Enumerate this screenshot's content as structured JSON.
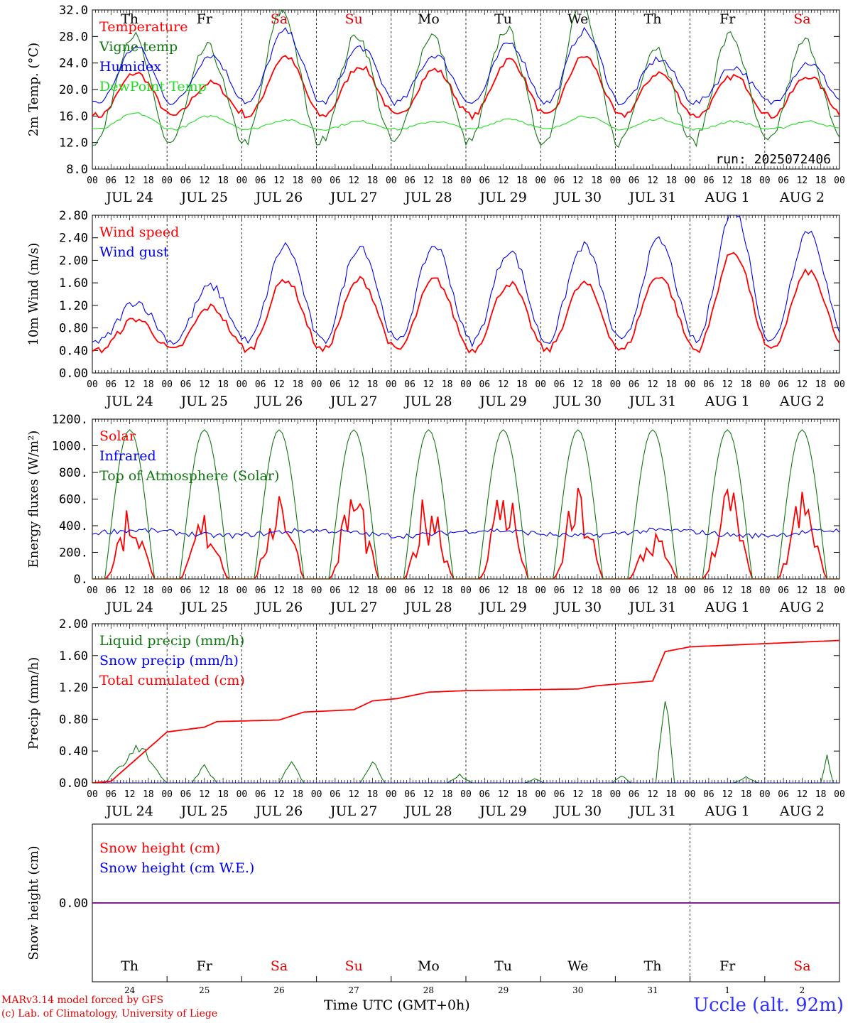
{
  "colors": {
    "red": "#ff0000",
    "green": "#117711",
    "blue": "#0000ee",
    "lightgreen": "#22dd22",
    "weekend": "#e00000"
  },
  "days": [
    {
      "weekday": "Th",
      "date": "JUL 24",
      "daynum": "24",
      "weekend": false
    },
    {
      "weekday": "Fr",
      "date": "JUL 25",
      "daynum": "25",
      "weekend": false
    },
    {
      "weekday": "Sa",
      "date": "JUL 26",
      "daynum": "26",
      "weekend": true
    },
    {
      "weekday": "Su",
      "date": "JUL 27",
      "daynum": "27",
      "weekend": true
    },
    {
      "weekday": "Mo",
      "date": "JUL 28",
      "daynum": "28",
      "weekend": false
    },
    {
      "weekday": "Tu",
      "date": "JUL 29",
      "daynum": "29",
      "weekend": false
    },
    {
      "weekday": "We",
      "date": "JUL 30",
      "daynum": "30",
      "weekend": false
    },
    {
      "weekday": "Th",
      "date": "JUL 31",
      "daynum": "31",
      "weekend": false
    },
    {
      "weekday": "Fr",
      "date": "AUG  1",
      "daynum": "1",
      "weekend": false
    },
    {
      "weekday": "Sa",
      "date": "AUG  2",
      "daynum": "2",
      "weekend": true
    }
  ],
  "hour_labels": [
    "00",
    "06",
    "12",
    "18"
  ],
  "hour_label_end": "00",
  "footer": {
    "credit_line1": "MARv3.14 model forced by GFS",
    "credit_line2": "(c) Lab. of Climatology, University of Liege",
    "time_label": "Time UTC (GMT+0h)",
    "station": "Uccle (alt. 92m)"
  },
  "chart_data": [
    {
      "type": "line",
      "id": "temp",
      "ylabel": "2m Temp. (°C)",
      "ylim": [
        8,
        32
      ],
      "yticks": [
        8,
        12,
        16,
        20,
        24,
        28,
        32
      ],
      "ytick_labels": [
        "8.0",
        "12.0",
        "16.0",
        "20.0",
        "24.0",
        "28.0",
        "32.0"
      ],
      "annotation": "run: 2025072406",
      "show_weekdays": true,
      "series": [
        {
          "name": "Temperature",
          "color": "red",
          "amp": 5,
          "base": 16,
          "peak": 14,
          "amp_scale": [
            1.3,
            1.0,
            1.8,
            1.5,
            1.4,
            1.7,
            1.8,
            1.3,
            1.2,
            1.2
          ]
        },
        {
          "name": "Vigne temp",
          "color": "green",
          "amp": 9,
          "base": 12,
          "peak": 13,
          "amp_scale": [
            1.8,
            1.6,
            2.2,
            1.8,
            1.8,
            1.9,
            2.3,
            1.6,
            1.8,
            1.7
          ]
        },
        {
          "name": "Humidex",
          "color": "blue",
          "amp": 6,
          "base": 18,
          "peak": 14,
          "amp_scale": [
            1.4,
            1.2,
            1.8,
            1.4,
            1.2,
            1.5,
            1.8,
            1.1,
            0.9,
            1.0
          ]
        },
        {
          "name": "DewPoint Temp",
          "color": "lightgreen",
          "amp": 2,
          "base": 14,
          "peak": 14,
          "amp_scale": [
            1.2,
            1.0,
            0.7,
            0.6,
            0.6,
            0.8,
            1.0,
            0.8,
            0.6,
            0.6
          ]
        }
      ]
    },
    {
      "type": "line",
      "id": "wind",
      "ylabel": "10m Wind (m/s)",
      "ylim": [
        0,
        2.8
      ],
      "yticks": [
        0,
        0.4,
        0.8,
        1.2,
        1.6,
        2.0,
        2.4,
        2.8
      ],
      "ytick_labels": [
        "0.00",
        "0.40",
        "0.80",
        "1.20",
        "1.60",
        "2.00",
        "2.40",
        "2.80"
      ],
      "show_weekdays": false,
      "series": [
        {
          "name": "Wind speed",
          "color": "red",
          "amp": 0.7,
          "base": 0.4,
          "peak": 14,
          "amp_scale": [
            0.8,
            1.1,
            1.8,
            1.8,
            1.8,
            1.7,
            1.7,
            1.9,
            2.5,
            2.0
          ]
        },
        {
          "name": "Wind gust",
          "color": "blue",
          "amp": 0.9,
          "base": 0.55,
          "peak": 14,
          "amp_scale": [
            0.8,
            1.1,
            1.9,
            1.9,
            1.9,
            1.8,
            1.9,
            2.0,
            2.6,
            2.2
          ]
        }
      ]
    },
    {
      "type": "line",
      "id": "flux",
      "ylabel": "Energy fluxes (W/m²)",
      "ylim": [
        0,
        1200
      ],
      "yticks": [
        0,
        200,
        400,
        600,
        800,
        1000,
        1200
      ],
      "ytick_labels": [
        "0.",
        "200.",
        "400.",
        "600.",
        "800.",
        "1000.",
        "1200."
      ],
      "show_weekdays": false,
      "series": [
        {
          "name": "Solar",
          "color": "red",
          "kind": "solar",
          "peaks": [
            600,
            530,
            800,
            760,
            720,
            800,
            720,
            380,
            760,
            700
          ]
        },
        {
          "name": "Infrared",
          "color": "blue",
          "kind": "flat",
          "level": 345
        },
        {
          "name": "Top of Atmosphere (Solar)",
          "color": "green",
          "kind": "toa",
          "level": 1120
        }
      ]
    },
    {
      "type": "line",
      "id": "precip",
      "ylabel": "Precip (mm/h)",
      "ylim": [
        0,
        2
      ],
      "yticks": [
        0,
        0.4,
        0.8,
        1.2,
        1.6,
        2.0
      ],
      "ytick_labels": [
        "0.00",
        "0.40",
        "0.80",
        "1.20",
        "1.60",
        "2.00"
      ],
      "show_weekdays": false,
      "series": [
        {
          "name": "Liquid precip (mm/h)",
          "color": "green",
          "kind": "events",
          "events": [
            [
              14,
              0.5,
              9
            ],
            [
              16,
              0.55,
              4
            ],
            [
              36,
              0.25,
              3
            ],
            [
              64,
              0.3,
              3
            ],
            [
              90,
              0.32,
              3
            ],
            [
              118,
              0.12,
              3
            ],
            [
              142,
              0.06,
              2
            ],
            [
              170,
              0.12,
              2
            ],
            [
              184,
              1.45,
              2
            ],
            [
              210,
              0.08,
              3
            ],
            [
              236,
              0.38,
              1
            ]
          ]
        },
        {
          "name": "Snow precip (mm/h)",
          "color": "blue",
          "kind": "zero"
        },
        {
          "name": "Total cumulated (cm)",
          "color": "red",
          "kind": "steps",
          "steps": [
            [
              0,
              0.0
            ],
            [
              6,
              0.02
            ],
            [
              24,
              0.64
            ],
            [
              36,
              0.7
            ],
            [
              40,
              0.77
            ],
            [
              60,
              0.79
            ],
            [
              68,
              0.89
            ],
            [
              84,
              0.92
            ],
            [
              90,
              1.03
            ],
            [
              98,
              1.06
            ],
            [
              108,
              1.14
            ],
            [
              120,
              1.16
            ],
            [
              156,
              1.18
            ],
            [
              162,
              1.22
            ],
            [
              168,
              1.24
            ],
            [
              180,
              1.28
            ],
            [
              184,
              1.65
            ],
            [
              192,
              1.71
            ],
            [
              210,
              1.74
            ],
            [
              240,
              1.79
            ]
          ]
        }
      ]
    },
    {
      "type": "line",
      "id": "snow",
      "ylabel": "Snow height (cm)",
      "ylim": [
        -1,
        1
      ],
      "yticks": [
        0
      ],
      "ytick_labels": [
        "0.00"
      ],
      "show_weekdays": false,
      "series": [
        {
          "name": "Snow height (cm)",
          "color": "red",
          "kind": "zero"
        },
        {
          "name": "Snow height (cm W.E.)",
          "color": "blue",
          "kind": "zero"
        }
      ]
    }
  ]
}
